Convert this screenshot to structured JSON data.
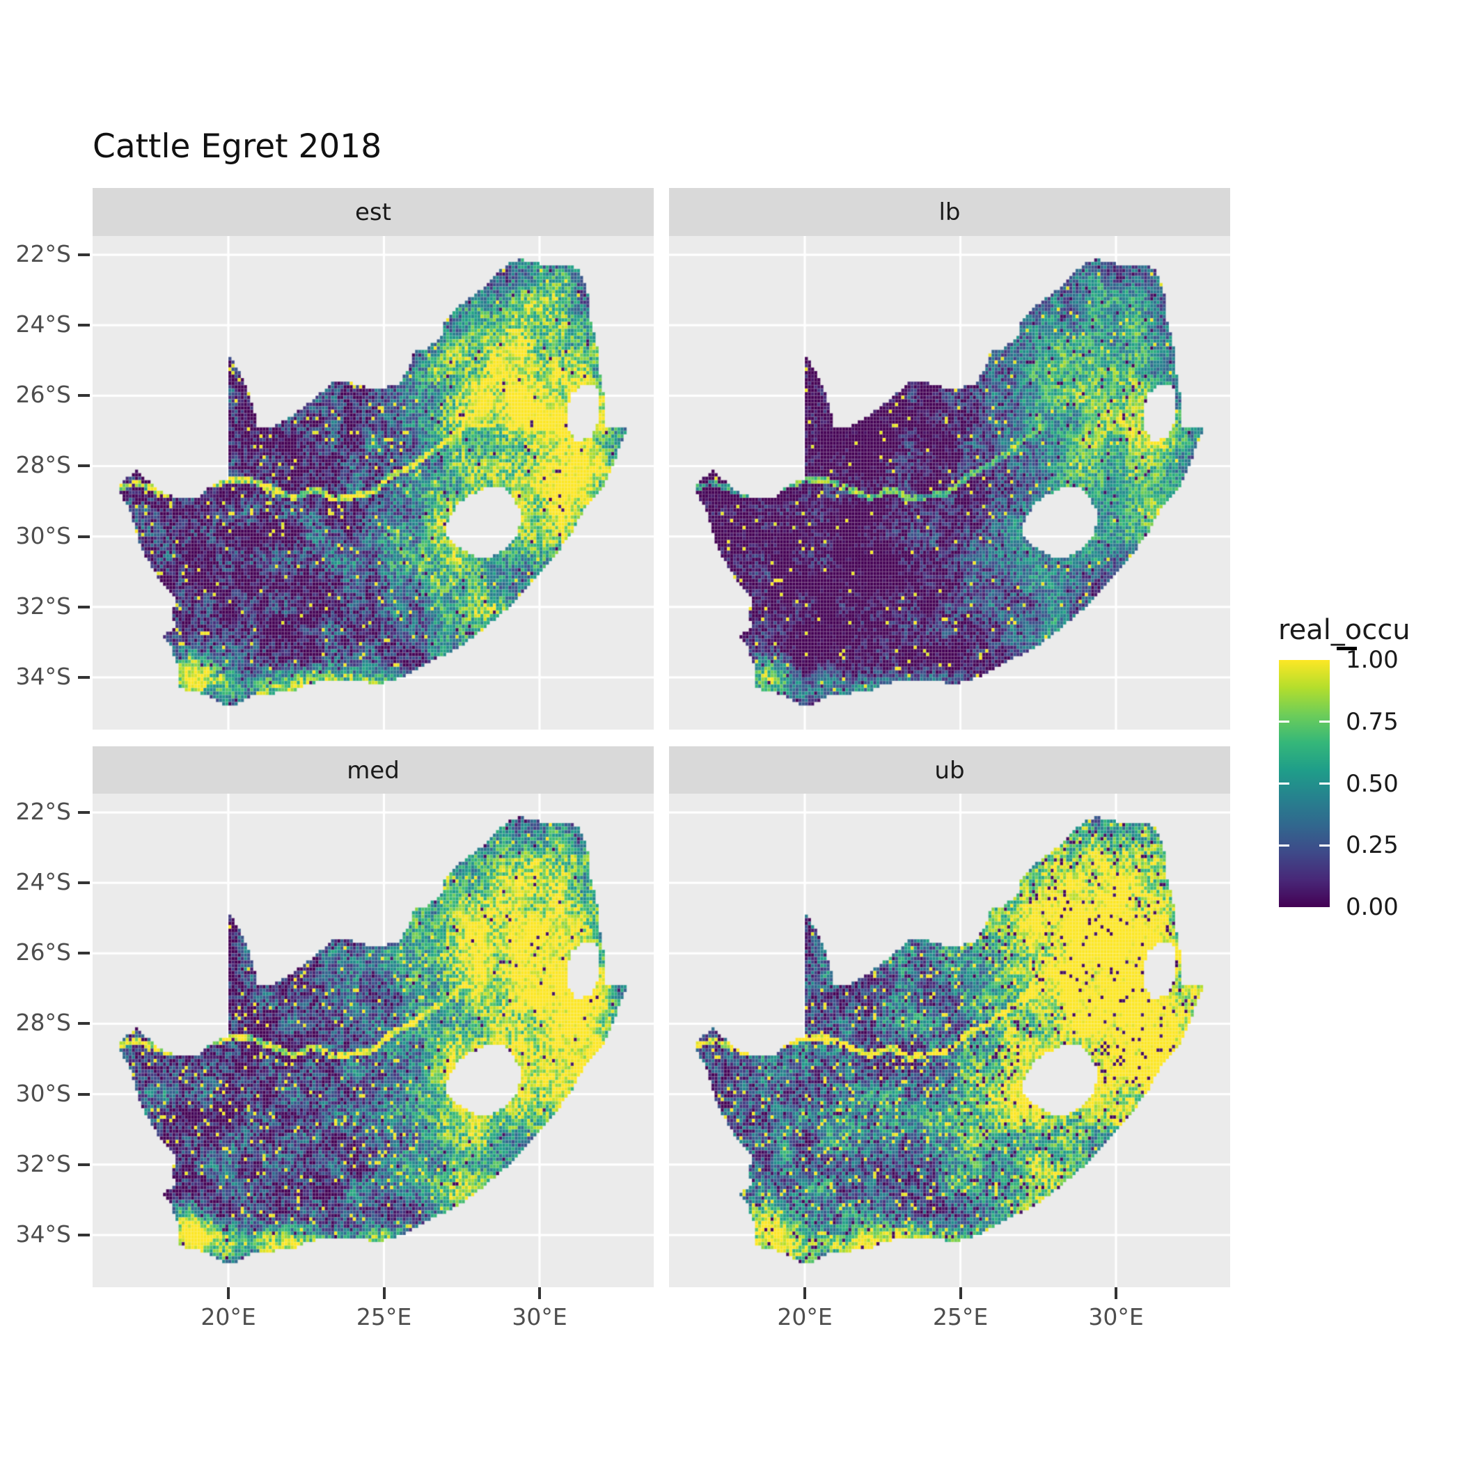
{
  "title": "Cattle Egret 2018",
  "legend": {
    "title": "real_occu",
    "entries": [
      {
        "label": "1.00",
        "value": 1.0
      },
      {
        "label": "0.75",
        "value": 0.75
      },
      {
        "label": "0.50",
        "value": 0.5
      },
      {
        "label": "0.25",
        "value": 0.25
      },
      {
        "label": "0.00",
        "value": 0.0
      }
    ]
  },
  "axes": {
    "x": {
      "ticks": [
        {
          "label": "20°E",
          "lon": 20
        },
        {
          "label": "25°E",
          "lon": 25
        },
        {
          "label": "30°E",
          "lon": 30
        }
      ]
    },
    "y": {
      "ticks": [
        {
          "label": "22°S",
          "lat": -22
        },
        {
          "label": "24°S",
          "lat": -24
        },
        {
          "label": "26°S",
          "lat": -26
        },
        {
          "label": "28°S",
          "lat": -28
        },
        {
          "label": "30°S",
          "lat": -30
        },
        {
          "label": "32°S",
          "lat": -32
        },
        {
          "label": "34°S",
          "lat": -34
        }
      ]
    }
  },
  "colors": {
    "panel_bg": "#ebebeb",
    "strip_bg": "#d9d9d9",
    "grid": "#ffffff",
    "axis_text": "#4d4d4d",
    "tick": "#333333",
    "title_text": "#111111"
  },
  "chart_data": {
    "type": "heatmap",
    "title": "Cattle Egret 2018",
    "variable": "real_occu",
    "value_range": [
      0,
      1
    ],
    "colormap": "viridis",
    "viridis_stops": [
      "#440154",
      "#482878",
      "#3E4A89",
      "#31688E",
      "#26828E",
      "#1F9E89",
      "#35B779",
      "#6DCD59",
      "#B4DE2C",
      "#FDE725"
    ],
    "legend_labels": [
      "1.00",
      "0.75",
      "0.50",
      "0.25",
      "0.00"
    ],
    "x_ticks_lon": [
      20,
      25,
      30
    ],
    "y_ticks_lat": [
      -22,
      -24,
      -26,
      -28,
      -30,
      -32,
      -34
    ],
    "lon_range": [
      15.64,
      33.67
    ],
    "lat_range": [
      -35.47,
      -21.47
    ],
    "cell_size_deg": 0.1,
    "region": "South Africa (Lesotho and Eswatini shown as no-data holes)",
    "facets": [
      {
        "label": "est",
        "col": 0,
        "row": 0,
        "gain": 1.0,
        "offset": 0.0,
        "bright_speck": 0.03,
        "dark_speck": 0.02,
        "seed": 1
      },
      {
        "label": "lb",
        "col": 1,
        "row": 0,
        "gain": 0.85,
        "offset": -0.14,
        "bright_speck": 0.02,
        "dark_speck": 0.03,
        "seed": 2
      },
      {
        "label": "med",
        "col": 0,
        "row": 1,
        "gain": 1.0,
        "offset": 0.05,
        "bright_speck": 0.04,
        "dark_speck": 0.02,
        "seed": 3
      },
      {
        "label": "ub",
        "col": 1,
        "row": 1,
        "gain": 1.0,
        "offset": 0.22,
        "bright_speck": 0.05,
        "dark_speck": 0.07,
        "seed": 4
      }
    ],
    "pattern": {
      "base": 0.1,
      "low_freq_noise_amp": 0.45,
      "high_freq_noise_amp": 0.5,
      "river_value": 0.93,
      "river_radius_deg": 0.085,
      "trend_gaussians": [
        {
          "cx": 29.3,
          "cy": -25.8,
          "sx": 3.4,
          "sy": 2.6,
          "w": 0.95
        },
        {
          "cx": 31.3,
          "cy": -28.9,
          "sx": 1.5,
          "sy": 2.4,
          "w": 0.75
        },
        {
          "cx": 28.3,
          "cy": -29.8,
          "sx": 1.9,
          "sy": 1.6,
          "w": 0.55
        },
        {
          "cx": 18.9,
          "cy": -33.9,
          "sx": 0.8,
          "sy": 0.7,
          "w": 0.85
        },
        {
          "cx": 27.8,
          "cy": -32.6,
          "sx": 1.8,
          "sy": 1.1,
          "w": 0.5
        },
        {
          "cx": 26.5,
          "cy": -30.3,
          "sx": 2.6,
          "sy": 1.8,
          "w": 0.3
        },
        {
          "cx": 29.8,
          "cy": -23.2,
          "sx": 1.6,
          "sy": 1.0,
          "w": 0.3
        },
        {
          "cx": 22.8,
          "cy": -34.3,
          "sx": 3.6,
          "sy": 0.5,
          "w": 0.7
        }
      ]
    },
    "map": {
      "boundary": [
        [
          16.45,
          -28.6
        ],
        [
          16.78,
          -28.32
        ],
        [
          17.05,
          -28.1
        ],
        [
          17.4,
          -28.4
        ],
        [
          17.9,
          -28.76
        ],
        [
          18.4,
          -28.9
        ],
        [
          19.0,
          -28.92
        ],
        [
          19.55,
          -28.47
        ],
        [
          19.98,
          -28.42
        ],
        [
          19.98,
          -24.75
        ],
        [
          20.35,
          -25.3
        ],
        [
          20.6,
          -25.75
        ],
        [
          20.75,
          -26.2
        ],
        [
          20.88,
          -26.6
        ],
        [
          20.95,
          -26.88
        ],
        [
          21.5,
          -26.86
        ],
        [
          21.9,
          -26.67
        ],
        [
          22.3,
          -26.4
        ],
        [
          22.7,
          -26.12
        ],
        [
          22.95,
          -25.95
        ],
        [
          23.3,
          -25.62
        ],
        [
          23.9,
          -25.62
        ],
        [
          24.4,
          -25.75
        ],
        [
          25.0,
          -25.77
        ],
        [
          25.5,
          -25.65
        ],
        [
          25.85,
          -25.1
        ],
        [
          25.98,
          -24.75
        ],
        [
          26.4,
          -24.65
        ],
        [
          26.85,
          -24.3
        ],
        [
          26.97,
          -23.85
        ],
        [
          27.3,
          -23.52
        ],
        [
          27.75,
          -23.22
        ],
        [
          28.2,
          -22.95
        ],
        [
          28.6,
          -22.55
        ],
        [
          29.05,
          -22.2
        ],
        [
          29.45,
          -22.13
        ],
        [
          30.0,
          -22.25
        ],
        [
          30.6,
          -22.3
        ],
        [
          31.1,
          -22.35
        ],
        [
          31.3,
          -22.42
        ],
        [
          31.55,
          -23.1
        ],
        [
          31.56,
          -23.7
        ],
        [
          31.75,
          -24.2
        ],
        [
          31.9,
          -24.8
        ],
        [
          31.95,
          -25.35
        ],
        [
          32.06,
          -25.9
        ],
        [
          32.09,
          -26.4
        ],
        [
          32.05,
          -26.86
        ],
        [
          32.89,
          -26.86
        ],
        [
          32.62,
          -27.3
        ],
        [
          32.46,
          -27.8
        ],
        [
          32.2,
          -28.35
        ],
        [
          31.9,
          -28.8
        ],
        [
          31.4,
          -29.3
        ],
        [
          31.05,
          -29.87
        ],
        [
          30.7,
          -30.3
        ],
        [
          30.25,
          -30.85
        ],
        [
          29.85,
          -31.25
        ],
        [
          29.25,
          -31.85
        ],
        [
          28.7,
          -32.25
        ],
        [
          28.1,
          -32.7
        ],
        [
          27.5,
          -33.1
        ],
        [
          26.8,
          -33.42
        ],
        [
          26.15,
          -33.75
        ],
        [
          25.68,
          -33.98
        ],
        [
          24.85,
          -34.2
        ],
        [
          24.2,
          -34.1
        ],
        [
          23.6,
          -34.1
        ],
        [
          23.0,
          -34.1
        ],
        [
          22.5,
          -34.2
        ],
        [
          22.12,
          -34.4
        ],
        [
          21.5,
          -34.45
        ],
        [
          20.9,
          -34.45
        ],
        [
          20.45,
          -34.7
        ],
        [
          20.0,
          -34.83
        ],
        [
          19.6,
          -34.65
        ],
        [
          19.25,
          -34.47
        ],
        [
          18.85,
          -34.4
        ],
        [
          18.47,
          -34.32
        ],
        [
          18.35,
          -34.02
        ],
        [
          18.47,
          -33.8
        ],
        [
          18.25,
          -33.4
        ],
        [
          18.1,
          -33.0
        ],
        [
          17.87,
          -32.8
        ],
        [
          18.27,
          -32.63
        ],
        [
          18.22,
          -32.1
        ],
        [
          18.33,
          -31.73
        ],
        [
          17.9,
          -31.4
        ],
        [
          17.55,
          -30.9
        ],
        [
          17.25,
          -30.4
        ],
        [
          17.05,
          -29.9
        ],
        [
          16.9,
          -29.4
        ],
        [
          16.65,
          -28.95
        ]
      ],
      "holes": [
        [
          [
            27.02,
            -29.65
          ],
          [
            27.35,
            -29.1
          ],
          [
            27.75,
            -28.85
          ],
          [
            28.25,
            -28.62
          ],
          [
            28.8,
            -28.6
          ],
          [
            29.15,
            -28.9
          ],
          [
            29.45,
            -29.35
          ],
          [
            29.3,
            -29.9
          ],
          [
            28.9,
            -30.35
          ],
          [
            28.35,
            -30.65
          ],
          [
            27.75,
            -30.5
          ],
          [
            27.35,
            -30.25
          ],
          [
            27.05,
            -29.95
          ]
        ],
        [
          [
            30.85,
            -26.4
          ],
          [
            31.05,
            -25.95
          ],
          [
            31.35,
            -25.72
          ],
          [
            31.85,
            -25.75
          ],
          [
            31.93,
            -26.15
          ],
          [
            31.93,
            -26.7
          ],
          [
            31.63,
            -27.2
          ],
          [
            31.18,
            -27.3
          ],
          [
            30.9,
            -26.95
          ]
        ]
      ],
      "rivers": [
        [
          [
            24.65,
            -28.75
          ],
          [
            24.0,
            -28.85
          ],
          [
            23.4,
            -28.95
          ],
          [
            22.8,
            -28.65
          ],
          [
            22.1,
            -28.9
          ],
          [
            21.4,
            -28.65
          ],
          [
            20.7,
            -28.4
          ],
          [
            20.0,
            -28.42
          ],
          [
            19.4,
            -28.55
          ],
          [
            18.8,
            -28.85
          ],
          [
            18.1,
            -28.85
          ],
          [
            17.6,
            -28.65
          ],
          [
            17.1,
            -28.5
          ],
          [
            16.5,
            -28.6
          ]
        ],
        [
          [
            27.65,
            -26.85
          ],
          [
            27.0,
            -27.3
          ],
          [
            26.4,
            -27.7
          ],
          [
            25.8,
            -28.05
          ],
          [
            25.2,
            -28.3
          ],
          [
            24.65,
            -28.75
          ]
        ]
      ]
    }
  }
}
